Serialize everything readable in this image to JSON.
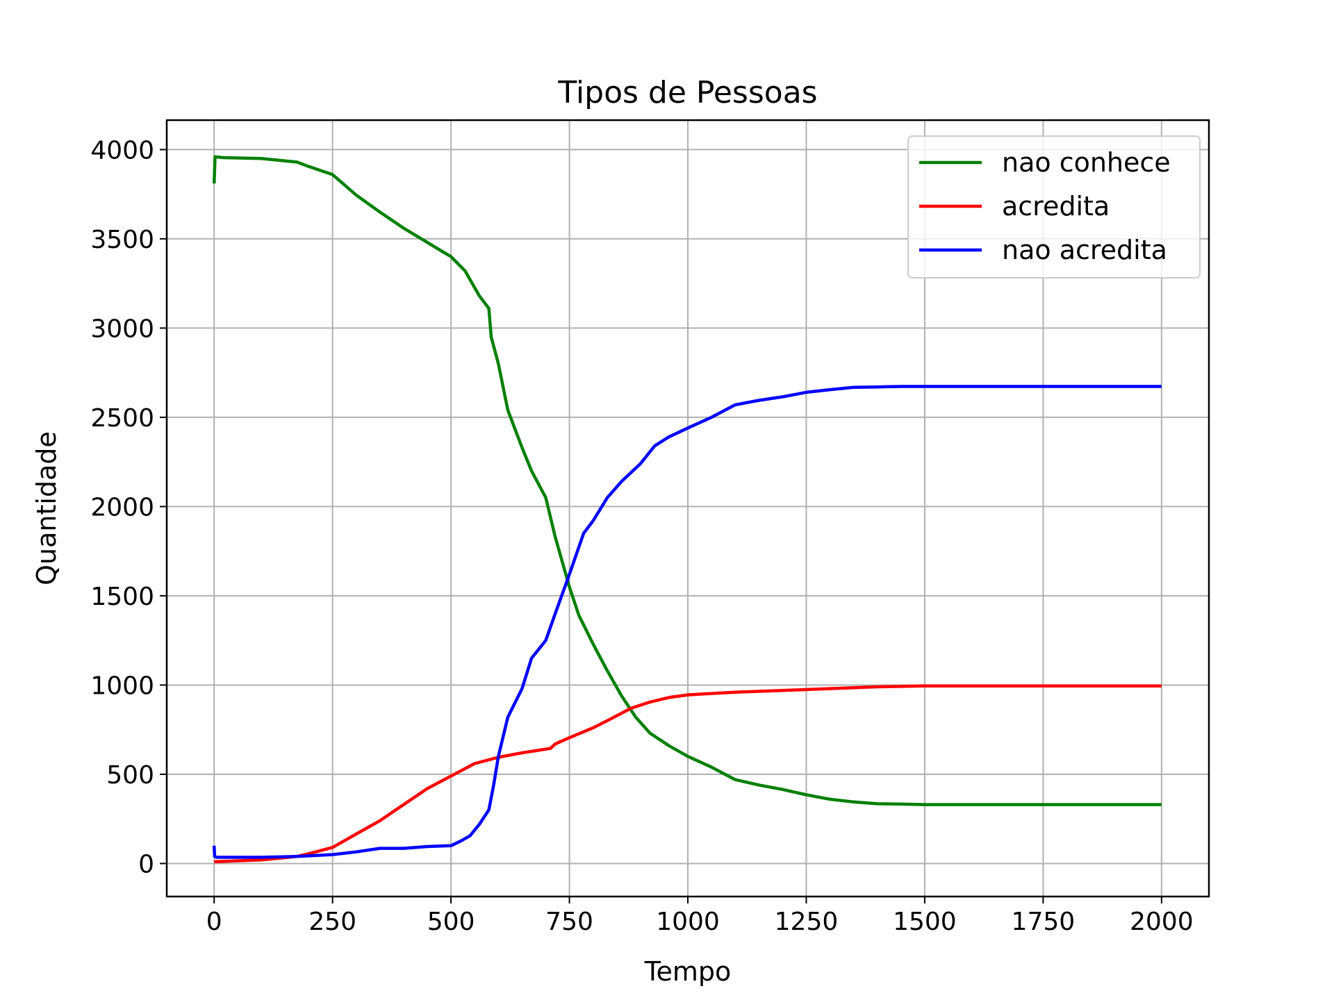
{
  "chart_data": {
    "type": "line",
    "title": "Tipos de Pessoas",
    "xlabel": "Tempo",
    "ylabel": "Quantidade",
    "xlim": [
      -100,
      2100
    ],
    "ylim": [
      -185,
      4165
    ],
    "xticks": [
      0,
      250,
      500,
      750,
      1000,
      1250,
      1500,
      1750,
      2000
    ],
    "yticks": [
      0,
      500,
      1000,
      1500,
      2000,
      2500,
      3000,
      3500,
      4000
    ],
    "grid": true,
    "legend_position": "top-right",
    "series": [
      {
        "name": "nao conhece",
        "color": "#008000",
        "points": [
          [
            0,
            3810
          ],
          [
            2,
            3960
          ],
          [
            20,
            3955
          ],
          [
            100,
            3950
          ],
          [
            175,
            3930
          ],
          [
            200,
            3905
          ],
          [
            250,
            3860
          ],
          [
            300,
            3745
          ],
          [
            350,
            3650
          ],
          [
            400,
            3560
          ],
          [
            450,
            3480
          ],
          [
            500,
            3400
          ],
          [
            530,
            3320
          ],
          [
            560,
            3180
          ],
          [
            580,
            3110
          ],
          [
            585,
            2950
          ],
          [
            600,
            2800
          ],
          [
            620,
            2540
          ],
          [
            650,
            2330
          ],
          [
            670,
            2200
          ],
          [
            700,
            2050
          ],
          [
            720,
            1830
          ],
          [
            750,
            1550
          ],
          [
            770,
            1390
          ],
          [
            800,
            1230
          ],
          [
            830,
            1080
          ],
          [
            860,
            940
          ],
          [
            890,
            820
          ],
          [
            920,
            730
          ],
          [
            960,
            660
          ],
          [
            1000,
            600
          ],
          [
            1050,
            540
          ],
          [
            1100,
            470
          ],
          [
            1150,
            440
          ],
          [
            1200,
            415
          ],
          [
            1250,
            385
          ],
          [
            1300,
            360
          ],
          [
            1350,
            345
          ],
          [
            1400,
            335
          ],
          [
            1450,
            333
          ],
          [
            1500,
            330
          ],
          [
            2000,
            330
          ]
        ]
      },
      {
        "name": "acredita",
        "color": "#ff0000",
        "points": [
          [
            0,
            10
          ],
          [
            100,
            20
          ],
          [
            175,
            40
          ],
          [
            200,
            55
          ],
          [
            250,
            90
          ],
          [
            300,
            165
          ],
          [
            350,
            240
          ],
          [
            400,
            330
          ],
          [
            450,
            420
          ],
          [
            500,
            490
          ],
          [
            550,
            560
          ],
          [
            600,
            595
          ],
          [
            650,
            620
          ],
          [
            710,
            645
          ],
          [
            720,
            670
          ],
          [
            750,
            705
          ],
          [
            800,
            760
          ],
          [
            830,
            800
          ],
          [
            880,
            870
          ],
          [
            920,
            905
          ],
          [
            960,
            930
          ],
          [
            1000,
            945
          ],
          [
            1100,
            960
          ],
          [
            1200,
            970
          ],
          [
            1300,
            980
          ],
          [
            1400,
            990
          ],
          [
            1500,
            995
          ],
          [
            2000,
            995
          ]
        ]
      },
      {
        "name": "nao acredita",
        "color": "#0000ff",
        "points": [
          [
            0,
            100
          ],
          [
            1,
            40
          ],
          [
            5,
            35
          ],
          [
            100,
            35
          ],
          [
            175,
            40
          ],
          [
            250,
            50
          ],
          [
            300,
            65
          ],
          [
            350,
            85
          ],
          [
            400,
            85
          ],
          [
            450,
            95
          ],
          [
            500,
            100
          ],
          [
            520,
            125
          ],
          [
            540,
            155
          ],
          [
            560,
            220
          ],
          [
            580,
            300
          ],
          [
            590,
            440
          ],
          [
            600,
            600
          ],
          [
            620,
            820
          ],
          [
            650,
            980
          ],
          [
            670,
            1150
          ],
          [
            700,
            1250
          ],
          [
            720,
            1400
          ],
          [
            750,
            1620
          ],
          [
            780,
            1850
          ],
          [
            800,
            1920
          ],
          [
            830,
            2050
          ],
          [
            860,
            2140
          ],
          [
            900,
            2240
          ],
          [
            930,
            2340
          ],
          [
            960,
            2390
          ],
          [
            1000,
            2440
          ],
          [
            1050,
            2500
          ],
          [
            1100,
            2570
          ],
          [
            1150,
            2595
          ],
          [
            1200,
            2615
          ],
          [
            1250,
            2640
          ],
          [
            1300,
            2655
          ],
          [
            1350,
            2668
          ],
          [
            1400,
            2670
          ],
          [
            1450,
            2673
          ],
          [
            2000,
            2673
          ]
        ]
      }
    ]
  }
}
